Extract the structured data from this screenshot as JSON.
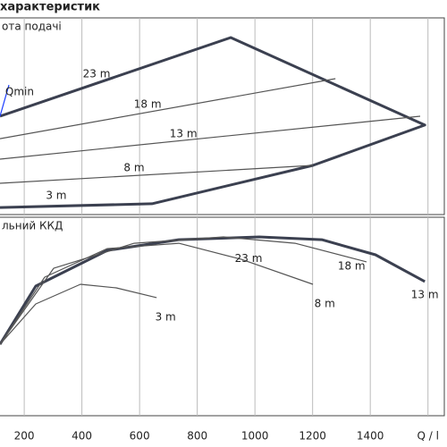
{
  "chart_data": [
    {
      "type": "line",
      "title": "характеристик",
      "subtitle": "ота подачі",
      "xlim": [
        116,
        1666
      ],
      "ylim": [
        0,
        100
      ],
      "series": [
        {
          "color": "#3b4050",
          "x": [
            116,
            916,
            1589,
            1201,
            643,
            116
          ],
          "values": [
            50,
            90,
            45.5,
            25,
            5.5,
            3.6
          ]
        },
        {
          "color": "#555555",
          "x": [
            116,
            1279
          ],
          "values": [
            38.6,
            69.1
          ]
        },
        {
          "color": "#555555",
          "x": [
            116,
            1573
          ],
          "values": [
            28.2,
            50
          ]
        },
        {
          "color": "#555555",
          "x": [
            116,
            1201
          ],
          "values": [
            15.9,
            25
          ]
        },
        {
          "color": "#1a3cff",
          "x": [
            116,
            147
          ],
          "values": [
            50,
            65.9
          ]
        }
      ],
      "annotations": [
        {
          "text": "23 m",
          "x": 451,
          "y": 71.4
        },
        {
          "text": "18 m",
          "x": 628,
          "y": 55.9
        },
        {
          "text": "13 m",
          "x": 752,
          "y": 40.9
        },
        {
          "text": "8 m",
          "x": 581,
          "y": 23.6
        },
        {
          "text": "3 m",
          "x": 311,
          "y": 9.5
        },
        {
          "text": "Qmin",
          "x": 184,
          "y": 62.3
        }
      ]
    },
    {
      "type": "line",
      "subtitle": "льний ККД",
      "xlim": [
        116,
        1666
      ],
      "ylim": [
        0,
        100
      ],
      "xticks": [
        200,
        400,
        600,
        800,
        1000,
        1200,
        1400,
        {
          "value": 1600,
          "label": "Q / l"
        }
      ],
      "series": [
        {
          "color": "#3b4050",
          "x": [
            116,
            240,
            488,
            736,
            1015,
            1232,
            1418,
            1589
          ],
          "values": [
            36,
            65.3,
            83.3,
            88.7,
            90.1,
            88.7,
            81.1,
            67.6
          ]
        },
        {
          "color": "#555555",
          "x": [
            116,
            240,
            395,
            519,
            659
          ],
          "values": [
            36,
            56.3,
            66.2,
            64.4,
            59.5
          ]
        },
        {
          "color": "#555555",
          "x": [
            116,
            271,
            488,
            736,
            953,
            1201
          ],
          "values": [
            36,
            69.8,
            84.2,
            86.9,
            78.8,
            66.2
          ]
        },
        {
          "color": "#555555",
          "x": [
            116,
            302,
            581,
            891,
            1139,
            1387
          ],
          "values": [
            36,
            74.3,
            86.9,
            90.1,
            86.9,
            77.5
          ]
        }
      ],
      "annotations": [
        {
          "text": "23 m",
          "x": 978,
          "y": 79
        },
        {
          "text": "18 m",
          "x": 1335,
          "y": 75.2
        },
        {
          "text": "13 m",
          "x": 1589,
          "y": 60.8
        },
        {
          "text": "8 m",
          "x": 1242,
          "y": 56.3
        },
        {
          "text": "3 m",
          "x": 690,
          "y": 49.5
        }
      ]
    }
  ]
}
